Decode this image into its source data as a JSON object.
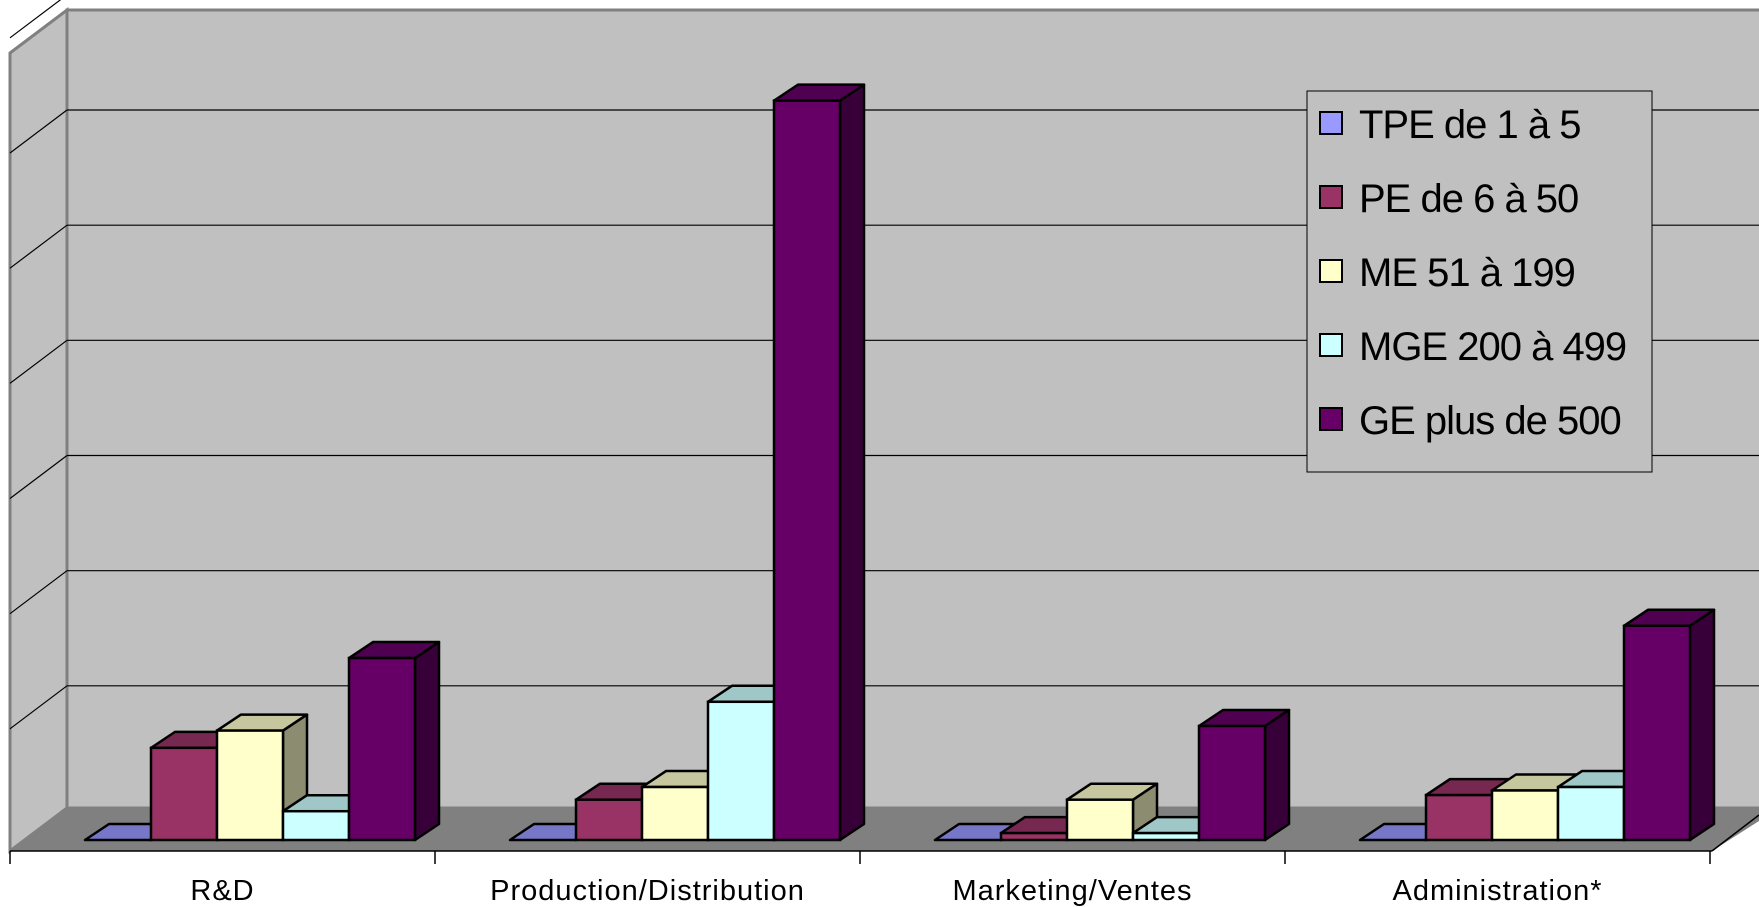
{
  "chart_data": {
    "type": "bar",
    "title": "",
    "xlabel": "",
    "ylabel": "",
    "categories": [
      "R&D",
      "Production/Distribution",
      "Marketing/Ventes",
      "Administration*"
    ],
    "series": [
      {
        "name": "TPE de 1 à 5",
        "color": "#9999ff",
        "values": [
          0,
          0,
          0,
          0
        ]
      },
      {
        "name": "PE de 6 à 50",
        "color": "#993366",
        "values": [
          8.0,
          3.5,
          0.6,
          3.9
        ]
      },
      {
        "name": "ME 51 à 199",
        "color": "#ffffcc",
        "values": [
          9.5,
          4.6,
          3.5,
          4.3
        ]
      },
      {
        "name": "MGE 200 à 499",
        "color": "#ccffff",
        "values": [
          2.5,
          12.0,
          0.6,
          4.6
        ]
      },
      {
        "name": "GE plus de 500",
        "color": "#660066",
        "values": [
          15.8,
          64.2,
          9.9,
          18.6
        ]
      }
    ],
    "ylim": [
      0,
      70
    ],
    "gridlines": [
      10,
      20,
      30,
      40,
      50,
      60,
      70
    ],
    "grid": true,
    "legend": "top-right",
    "colors": {
      "wall": "#c0c0c0",
      "floor": "#808080",
      "side_wall": "#c0c0c0"
    }
  }
}
